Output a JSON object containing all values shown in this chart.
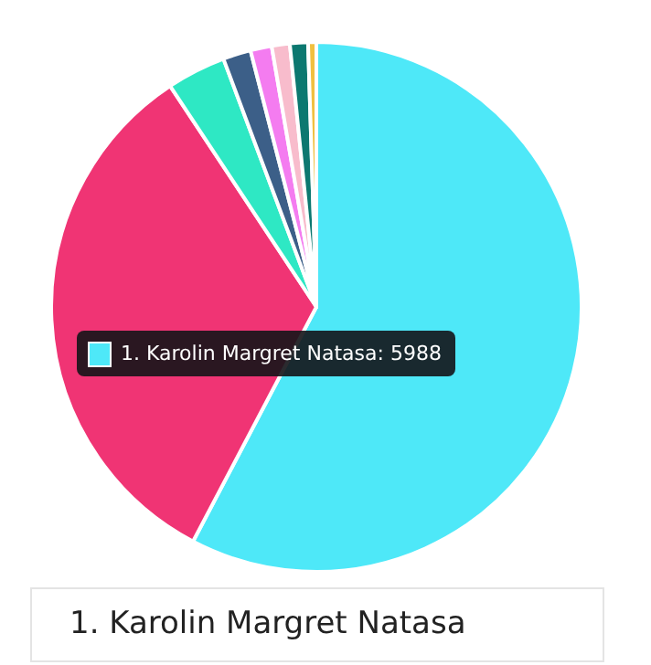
{
  "chart_data": {
    "type": "pie",
    "categories": [
      "1. Karolin Margret Natasa",
      null,
      null,
      null,
      null,
      null,
      null,
      null
    ],
    "values": [
      57.7,
      33,
      3.6,
      1.7,
      1.3,
      1.1,
      1.1,
      0.5
    ],
    "colors": [
      "#4ee8f8",
      "#f03474",
      "#2ee8c4",
      "#3c5f88",
      "#f47cf0",
      "#f8bccc",
      "#0c7870",
      "#f0c040"
    ],
    "legend": false,
    "annotations": [
      "1. Karolin Margret Natasa: 5988"
    ]
  }
}
